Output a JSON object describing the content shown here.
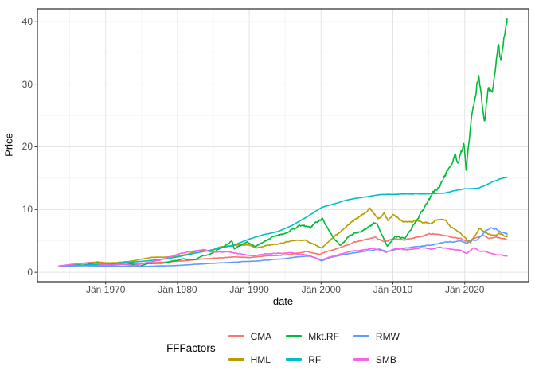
{
  "chart_data": {
    "type": "line",
    "title": "",
    "xlabel": "date",
    "ylabel": "Price",
    "x_range": [
      1960.5,
      2028.9
    ],
    "y_range": [
      -1.5,
      42.0
    ],
    "x_ticks": [
      {
        "value": 1970,
        "label": "Jän 1970"
      },
      {
        "value": 1980,
        "label": "Jän 1980"
      },
      {
        "value": 1990,
        "label": "Jän 1990"
      },
      {
        "value": 2000,
        "label": "Jän 2000"
      },
      {
        "value": 2010,
        "label": "Jän 2010"
      },
      {
        "value": 2020,
        "label": "Jän 2020"
      }
    ],
    "y_ticks": [
      {
        "value": 0,
        "label": "0"
      },
      {
        "value": 10,
        "label": "10"
      },
      {
        "value": 20,
        "label": "20"
      },
      {
        "value": 30,
        "label": "30"
      },
      {
        "value": 40,
        "label": "40"
      }
    ],
    "x_minor_ticks": [
      1965,
      1975,
      1985,
      1995,
      2005,
      2015,
      2025
    ],
    "y_minor_ticks": [
      5,
      15,
      25,
      35
    ],
    "grid": true,
    "legend": {
      "title": "FFFactors",
      "position": "bottom",
      "rows": 2,
      "order": [
        "CMA",
        "HML",
        "Mkt.RF",
        "RF",
        "RMW",
        "SMB"
      ]
    },
    "series": [
      {
        "name": "CMA",
        "color": "#F8766D",
        "seed": 11,
        "jitter": 0.025,
        "points": [
          [
            1963.5,
            1.0
          ],
          [
            1965,
            1.02
          ],
          [
            1967,
            1.12
          ],
          [
            1969,
            1.1
          ],
          [
            1971,
            1.18
          ],
          [
            1973,
            1.28
          ],
          [
            1974.5,
            1.3
          ],
          [
            1976,
            1.5
          ],
          [
            1978,
            1.6
          ],
          [
            1980,
            1.75
          ],
          [
            1982,
            1.95
          ],
          [
            1984,
            2.15
          ],
          [
            1986,
            2.3
          ],
          [
            1988,
            2.45
          ],
          [
            1990,
            2.35
          ],
          [
            1992,
            2.6
          ],
          [
            1994,
            2.7
          ],
          [
            1996,
            2.9
          ],
          [
            1998,
            3.3
          ],
          [
            1999.8,
            2.85
          ],
          [
            2001,
            3.4
          ],
          [
            2003,
            4.1
          ],
          [
            2004.5,
            4.7
          ],
          [
            2006,
            5.2
          ],
          [
            2007.5,
            5.6
          ],
          [
            2008.8,
            4.9
          ],
          [
            2010,
            5.3
          ],
          [
            2011.5,
            5.2
          ],
          [
            2013,
            5.5
          ],
          [
            2015,
            6.1
          ],
          [
            2016.5,
            6.0
          ],
          [
            2018,
            5.6
          ],
          [
            2019.5,
            5.4
          ],
          [
            2020.4,
            4.8
          ],
          [
            2021.5,
            5.5
          ],
          [
            2022.5,
            5.9
          ],
          [
            2023.3,
            5.4
          ],
          [
            2024,
            5.5
          ],
          [
            2024.8,
            5.6
          ],
          [
            2025.9,
            5.2
          ]
        ]
      },
      {
        "name": "HML",
        "color": "#B79F00",
        "seed": 22,
        "jitter": 0.03,
        "points": [
          [
            1963.5,
            1.0
          ],
          [
            1965,
            1.15
          ],
          [
            1967,
            1.45
          ],
          [
            1968.8,
            1.65
          ],
          [
            1970.5,
            1.5
          ],
          [
            1972,
            1.6
          ],
          [
            1973.5,
            1.75
          ],
          [
            1975,
            2.1
          ],
          [
            1976.5,
            2.45
          ],
          [
            1978,
            2.4
          ],
          [
            1980,
            2.55
          ],
          [
            1981.5,
            2.95
          ],
          [
            1983.5,
            3.55
          ],
          [
            1984.5,
            3.35
          ],
          [
            1986,
            4.0
          ],
          [
            1988,
            4.3
          ],
          [
            1989.5,
            4.45
          ],
          [
            1991,
            3.95
          ],
          [
            1992.5,
            4.3
          ],
          [
            1994,
            4.5
          ],
          [
            1996,
            5.0
          ],
          [
            1997.8,
            5.15
          ],
          [
            2000.1,
            3.85
          ],
          [
            2002,
            5.9
          ],
          [
            2003.8,
            7.6
          ],
          [
            2005,
            8.6
          ],
          [
            2006.8,
            10.2
          ],
          [
            2007.9,
            8.5
          ],
          [
            2008.8,
            9.4
          ],
          [
            2009.3,
            8.2
          ],
          [
            2010,
            9.0
          ],
          [
            2011.5,
            8.0
          ],
          [
            2013,
            8.3
          ],
          [
            2015.2,
            7.8
          ],
          [
            2016.9,
            8.7
          ],
          [
            2018,
            7.3
          ],
          [
            2019.5,
            6.2
          ],
          [
            2020.3,
            5.2
          ],
          [
            2020.8,
            4.7
          ],
          [
            2022.1,
            7.0
          ],
          [
            2023,
            6.2
          ],
          [
            2024.1,
            5.9
          ],
          [
            2024.8,
            6.3
          ],
          [
            2025.9,
            5.7
          ]
        ]
      },
      {
        "name": "Mkt.RF",
        "color": "#00BA38",
        "seed": 33,
        "jitter": 0.035,
        "points": [
          [
            1963.5,
            1.0
          ],
          [
            1965.8,
            1.25
          ],
          [
            1966.8,
            1.15
          ],
          [
            1968.8,
            1.5
          ],
          [
            1970.5,
            1.2
          ],
          [
            1972.9,
            1.6
          ],
          [
            1974.7,
            0.95
          ],
          [
            1976,
            1.4
          ],
          [
            1978,
            1.45
          ],
          [
            1980.8,
            2.1
          ],
          [
            1982.5,
            2.0
          ],
          [
            1983.5,
            2.6
          ],
          [
            1985,
            3.1
          ],
          [
            1987.6,
            5.0
          ],
          [
            1987.9,
            3.7
          ],
          [
            1989.7,
            4.9
          ],
          [
            1990.8,
            4.1
          ],
          [
            1993,
            5.5
          ],
          [
            1995,
            6.2
          ],
          [
            1997,
            7.5
          ],
          [
            1998.6,
            7.0
          ],
          [
            1999,
            7.8
          ],
          [
            2000.2,
            8.5
          ],
          [
            2001.7,
            5.6
          ],
          [
            2002.7,
            4.3
          ],
          [
            2004,
            5.9
          ],
          [
            2006,
            6.8
          ],
          [
            2007.8,
            7.9
          ],
          [
            2009.2,
            4.2
          ],
          [
            2010.3,
            5.7
          ],
          [
            2011.7,
            5.4
          ],
          [
            2013,
            7.8
          ],
          [
            2014,
            9.5
          ],
          [
            2015.6,
            12.8
          ],
          [
            2016.5,
            13.6
          ],
          [
            2017.5,
            16.0
          ],
          [
            2018.7,
            18.9
          ],
          [
            2019,
            16.9
          ],
          [
            2019.9,
            20.8
          ],
          [
            2020.2,
            16.2
          ],
          [
            2021.1,
            26.5
          ],
          [
            2021.95,
            31.5
          ],
          [
            2022.75,
            24.2
          ],
          [
            2023.3,
            29.5
          ],
          [
            2023.8,
            28.0
          ],
          [
            2024.7,
            36.3
          ],
          [
            2025.05,
            33.4
          ],
          [
            2025.9,
            40.4
          ]
        ]
      },
      {
        "name": "RF",
        "color": "#00BFC4",
        "seed": 44,
        "jitter": 0.004,
        "points": [
          [
            1963.5,
            1.0
          ],
          [
            1966,
            1.1
          ],
          [
            1968,
            1.2
          ],
          [
            1970,
            1.35
          ],
          [
            1972,
            1.5
          ],
          [
            1974,
            1.65
          ],
          [
            1976,
            1.85
          ],
          [
            1978,
            2.1
          ],
          [
            1980,
            2.45
          ],
          [
            1982,
            2.95
          ],
          [
            1984,
            3.4
          ],
          [
            1986,
            3.85
          ],
          [
            1988,
            4.4
          ],
          [
            1990,
            5.3
          ],
          [
            1992,
            6.0
          ],
          [
            1994,
            6.5
          ],
          [
            1996,
            7.5
          ],
          [
            1998,
            8.8
          ],
          [
            2000,
            10.3
          ],
          [
            2002,
            11.0
          ],
          [
            2004,
            11.6
          ],
          [
            2006,
            12.0
          ],
          [
            2008,
            12.35
          ],
          [
            2010,
            12.45
          ],
          [
            2013,
            12.5
          ],
          [
            2015,
            12.5
          ],
          [
            2017,
            12.6
          ],
          [
            2018,
            12.85
          ],
          [
            2019,
            13.1
          ],
          [
            2020,
            13.3
          ],
          [
            2021,
            13.35
          ],
          [
            2022,
            13.45
          ],
          [
            2023,
            13.95
          ],
          [
            2024,
            14.5
          ],
          [
            2025,
            14.9
          ],
          [
            2025.9,
            15.15
          ]
        ]
      },
      {
        "name": "RMW",
        "color": "#619CFF",
        "seed": 55,
        "jitter": 0.025,
        "points": [
          [
            1963.5,
            1.0
          ],
          [
            1965,
            1.0
          ],
          [
            1967,
            1.05
          ],
          [
            1969,
            1.0
          ],
          [
            1971,
            0.98
          ],
          [
            1973,
            0.95
          ],
          [
            1975,
            0.92
          ],
          [
            1977,
            1.0
          ],
          [
            1979,
            1.05
          ],
          [
            1981,
            1.15
          ],
          [
            1983,
            1.3
          ],
          [
            1985,
            1.45
          ],
          [
            1987,
            1.55
          ],
          [
            1989,
            1.7
          ],
          [
            1991,
            1.8
          ],
          [
            1993,
            2.0
          ],
          [
            1995,
            2.2
          ],
          [
            1997,
            2.5
          ],
          [
            1998.5,
            2.6
          ],
          [
            2000.1,
            1.85
          ],
          [
            2001.5,
            2.4
          ],
          [
            2003,
            2.8
          ],
          [
            2004.5,
            3.1
          ],
          [
            2006,
            3.3
          ],
          [
            2008,
            3.7
          ],
          [
            2009.2,
            3.3
          ],
          [
            2010.5,
            3.7
          ],
          [
            2012,
            3.9
          ],
          [
            2014,
            4.2
          ],
          [
            2015.5,
            4.4
          ],
          [
            2017,
            4.7
          ],
          [
            2018.5,
            4.9
          ],
          [
            2019.5,
            5.0
          ],
          [
            2020.3,
            4.6
          ],
          [
            2021,
            5.1
          ],
          [
            2021.7,
            5.2
          ],
          [
            2022.7,
            6.3
          ],
          [
            2023.6,
            7.1
          ],
          [
            2024.3,
            6.9
          ],
          [
            2025,
            6.4
          ],
          [
            2025.9,
            6.0
          ]
        ]
      },
      {
        "name": "SMB",
        "color": "#F564E3",
        "seed": 66,
        "jitter": 0.03,
        "points": [
          [
            1963.5,
            1.0
          ],
          [
            1965.5,
            1.3
          ],
          [
            1967.8,
            1.55
          ],
          [
            1969.5,
            1.25
          ],
          [
            1970.8,
            1.15
          ],
          [
            1972,
            1.3
          ],
          [
            1974,
            1.1
          ],
          [
            1976,
            1.6
          ],
          [
            1978,
            2.05
          ],
          [
            1980,
            2.9
          ],
          [
            1981.5,
            3.25
          ],
          [
            1983.5,
            3.6
          ],
          [
            1985,
            3.25
          ],
          [
            1987,
            3.25
          ],
          [
            1988.5,
            3.0
          ],
          [
            1990.5,
            2.6
          ],
          [
            1992,
            2.9
          ],
          [
            1994,
            3.1
          ],
          [
            1996,
            3.05
          ],
          [
            1998,
            2.75
          ],
          [
            2000.1,
            2.0
          ],
          [
            2001.5,
            2.5
          ],
          [
            2003,
            3.0
          ],
          [
            2004.5,
            3.4
          ],
          [
            2006,
            3.6
          ],
          [
            2007.3,
            3.85
          ],
          [
            2009,
            3.2
          ],
          [
            2010.5,
            3.75
          ],
          [
            2012,
            3.6
          ],
          [
            2014,
            3.95
          ],
          [
            2015.3,
            3.7
          ],
          [
            2016.5,
            4.0
          ],
          [
            2018,
            3.75
          ],
          [
            2019.5,
            3.5
          ],
          [
            2020.3,
            3.0
          ],
          [
            2021.2,
            3.85
          ],
          [
            2022,
            3.4
          ],
          [
            2023,
            3.25
          ],
          [
            2024.4,
            2.85
          ],
          [
            2025.9,
            2.6
          ]
        ]
      }
    ]
  },
  "style": {
    "panel_border": "#2b2b2b",
    "grid_major": "#e4e4e4",
    "grid_minor": "#f2f2f2",
    "tick_color": "#333333",
    "tick_label_color": "#4d4d4d",
    "axis_title_color": "#000000",
    "background": "#ffffff"
  }
}
